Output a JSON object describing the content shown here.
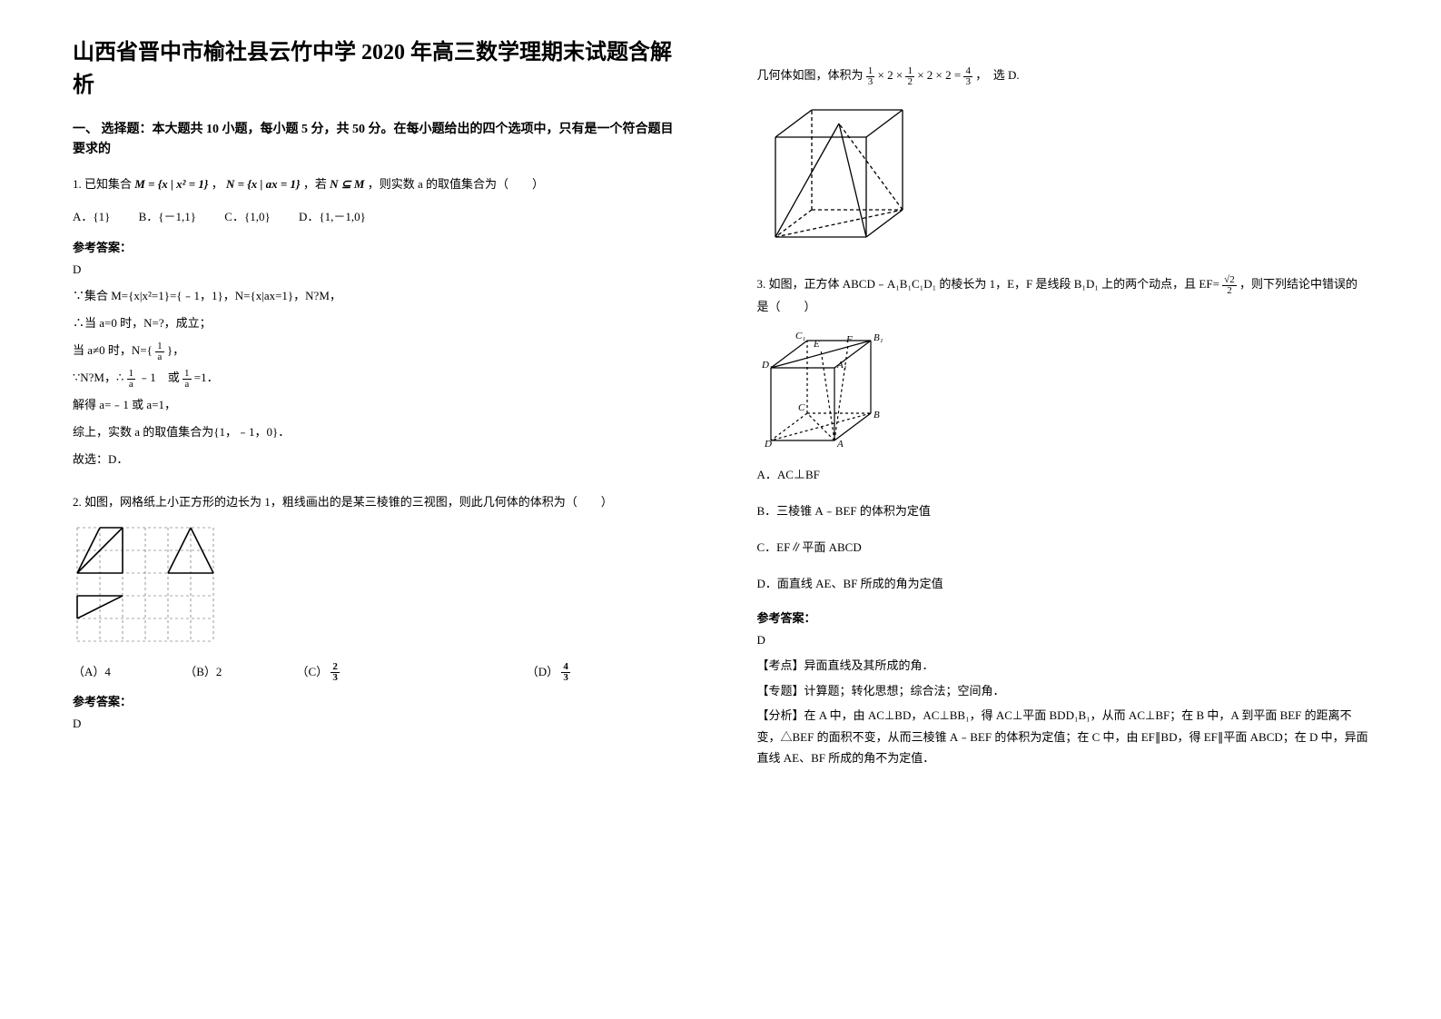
{
  "title": "山西省晋中市榆社县云竹中学 2020 年高三数学理期末试题含解析",
  "section1_header": "一、 选择题：本大题共 10 小题，每小题 5 分，共 50 分。在每小题给出的四个选项中，只有是一个符合题目要求的",
  "q1": {
    "stem_pre": "1. 已知集合",
    "stem_m": "M = {x | x² = 1}",
    "stem_mid1": "，",
    "stem_n": "N = {x | ax = 1}",
    "stem_mid2": "，若",
    "stem_cond": "N ⊆ M",
    "stem_post": "，则实数 a 的取值集合为（　　）",
    "opt_a": "A．{1}",
    "opt_b": "B．{－1,1}",
    "opt_c": "C．{1,0}",
    "opt_d": "D．{1,－1,0}",
    "answer_label": "参考答案：",
    "answer": "D",
    "s1": "∵集合 M={x|x²=1}={﹣1，1}，N={x|ax=1}，N?M，",
    "s2": "∴当 a=0 时，N=?，成立；",
    "s3a": "当 a≠0 时，N={",
    "s3b": "}，",
    "s4a": "∵N?M，∴",
    "s4b": "﹣1　或",
    "s4c": "=1．",
    "s5": "解得 a=﹣1 或 a=1，",
    "s6": "综上，实数 a 的取值集合为{1，﹣1，0}．",
    "s7": "故选：D．",
    "frac_num": "1",
    "frac_den": "a"
  },
  "q2": {
    "stem": "2. 如图，网格纸上小正方形的边长为 1，粗线画出的是某三棱锥的三视图，则此几何体的体积为（　　）",
    "opt_a": "（A）4",
    "opt_b": "（B）2",
    "opt_c_pre": "（C）",
    "opt_c_num": "2",
    "opt_c_den": "3",
    "opt_d_pre": "（D）",
    "opt_d_num": "4",
    "opt_d_den": "3",
    "answer_label": "参考答案：",
    "answer": "D",
    "grid": {
      "cols": 6,
      "rows": 5,
      "cell": 25,
      "bg_color": "#ffffff",
      "dash_color": "#555555",
      "line_color": "#000000"
    }
  },
  "right_top": {
    "pre": "几何体如图，体积为",
    "expr_parts": [
      "1",
      "3",
      "× 2 ×",
      "1",
      "2",
      "× 2 × 2 =",
      "4",
      "3"
    ],
    "post": "，　选 D."
  },
  "q3": {
    "stem_a": "3. 如图，正方体 ABCD﹣A₁B₁C₁D₁ 的棱长为 1，E，F 是线段 B₁D₁ 上的两个动点，且 EF= ",
    "ef_num": "√2",
    "ef_den": "2",
    "stem_b": "，则下列结论中错误的是（　　）",
    "opt_a": "A．AC⊥BF",
    "opt_b": "B．三棱锥 A﹣BEF 的体积为定值",
    "opt_c": "C．EF∥平面 ABCD",
    "opt_d": "D．面直线 AE、BF 所成的角为定值",
    "answer_label": "参考答案：",
    "answer": "D",
    "tag1": "【考点】异面直线及其所成的角．",
    "tag2": "【专题】计算题；转化思想；综合法；空间角．",
    "tag3": "【分析】在 A 中，由 AC⊥BD，AC⊥BB₁，得 AC⊥平面 BDD₁B₁，从而 AC⊥BF；在 B 中，A 到平面 BEF 的距离不变，△BEF 的面积不变，从而三棱锥 A﹣BEF 的体积为定值；在 C 中，由 EF∥BD，得 EF∥平面 ABCD；在 D 中，异面直线 AE、BF 所成的角不为定值．"
  },
  "solid_fig": {
    "size": 170,
    "stroke": "#000000"
  },
  "cube_fig": {
    "size": 130,
    "stroke": "#000000"
  }
}
